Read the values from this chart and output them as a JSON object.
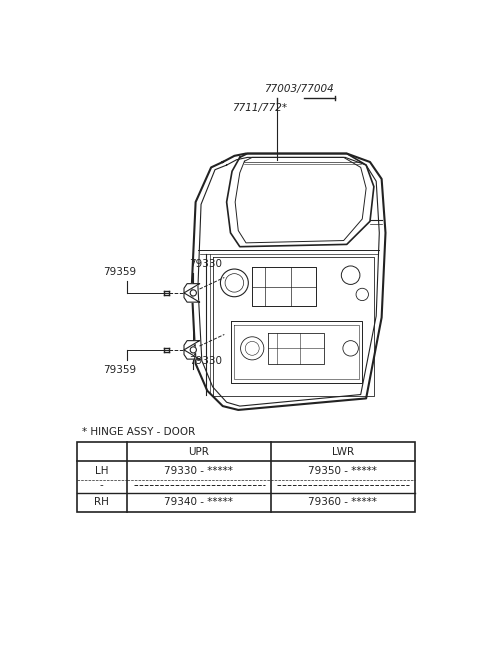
{
  "bg_color": "#ffffff",
  "title_part1": "77003/77004",
  "title_part2": "7711/772*",
  "label_79330_upr": "79330",
  "label_79359_upr": "79359",
  "label_79330_lwr": "79330",
  "label_79359_lwr": "79359",
  "hinge_note": "* HINGE ASSY - DOOR",
  "table_header_col2": "UPR",
  "table_header_col3": "LWR",
  "table_row1_col1": "LH",
  "table_row1_col2": "79330 - *****",
  "table_row1_col3": "79350 - *****",
  "table_row2_col1": "RH",
  "table_row2_col2": "79340 - *****",
  "table_row2_col3": "79360 - *****",
  "text_color": "#222222",
  "line_color": "#222222"
}
